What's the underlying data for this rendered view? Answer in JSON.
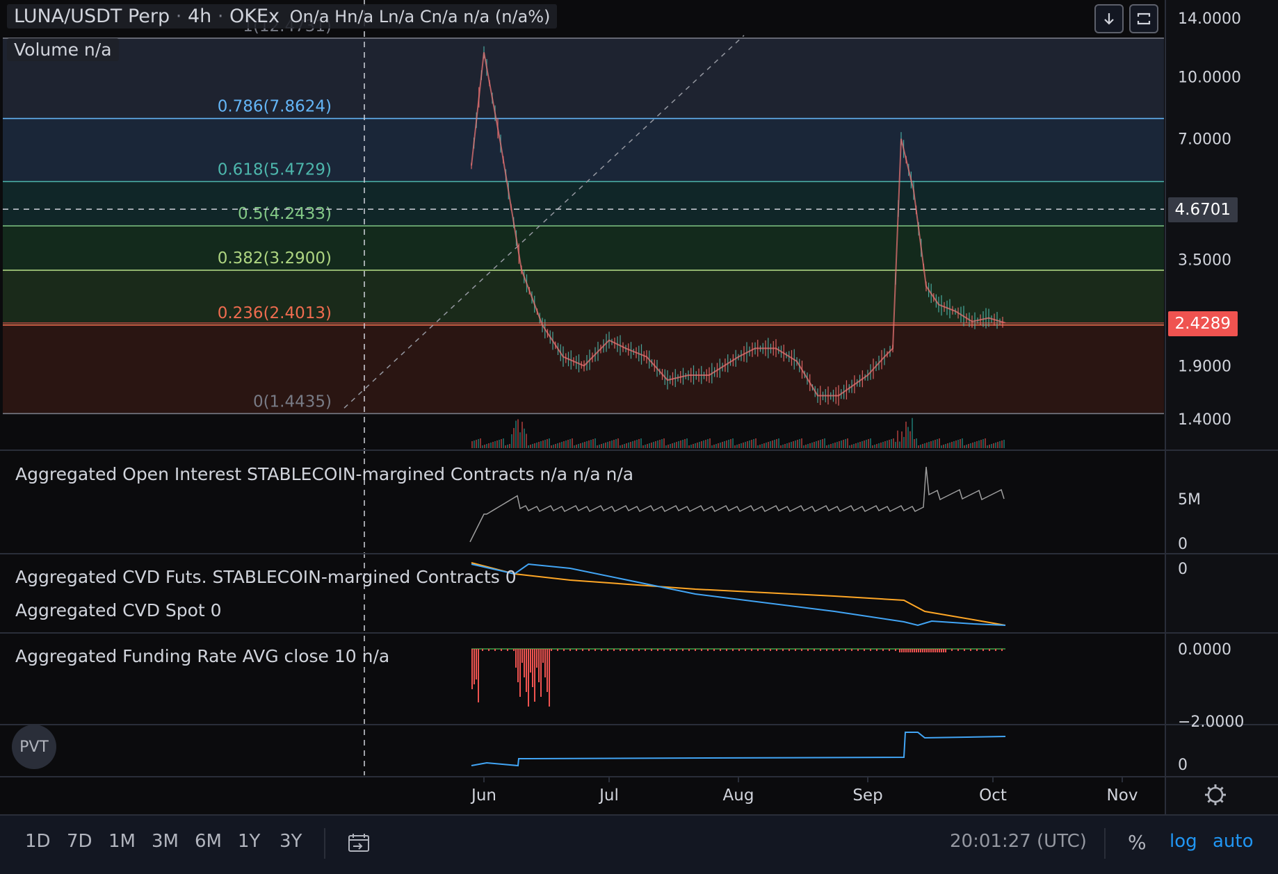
{
  "header": {
    "symbol": "LUNA/USDT Perp",
    "interval": "4h",
    "exchange": "OKEx",
    "ohlc": "On/a  Hn/a  Ln/a  Cn/a  n/a (n/a%)",
    "volume_label": "Volume  n/a",
    "sep": "·"
  },
  "panes": {
    "oi_label": "Aggregated Open Interest STABLECOIN-margined Contracts  n/a  n/a  n/a",
    "cvd_futs_label": "Aggregated CVD Futs. STABLECOIN-margined Contracts 0",
    "cvd_spot_label": "Aggregated CVD Spot 0",
    "funding_label": "Aggregated Funding Rate AVG close 10  n/a",
    "pvt_label": "PVT"
  },
  "price_axis": {
    "ticks": [
      "14.0000",
      "10.0000",
      "7.0000",
      "3.5000",
      "1.9000",
      "1.4000"
    ],
    "last_price": "2.4289",
    "crosshair_price": "4.6701",
    "last_price_color": "#ef5350",
    "oi_ticks": [
      "5M",
      "0"
    ],
    "cvd_ticks": [
      "0"
    ],
    "funding_ticks": [
      "0.0000",
      "−2.0000"
    ],
    "pvt_ticks": [
      "0"
    ]
  },
  "time_axis": {
    "labels": [
      "Jun",
      "Jul",
      "Aug",
      "Sep",
      "Oct",
      "Nov"
    ]
  },
  "fib_levels": [
    {
      "label": "1(12.4731)",
      "level": 1,
      "price": 12.4731,
      "color": "#787b86"
    },
    {
      "label": "0.786(7.8624)",
      "level": 0.786,
      "price": 7.8624,
      "color": "#64b5f6"
    },
    {
      "label": "0.618(5.4729)",
      "level": 0.618,
      "price": 5.4729,
      "color": "#4db6ac"
    },
    {
      "label": "0.5(4.2433)",
      "level": 0.5,
      "price": 4.2433,
      "color": "#81c784"
    },
    {
      "label": "0.382(3.2900)",
      "level": 0.382,
      "price": 3.29,
      "color": "#aed581"
    },
    {
      "label": "0.236(2.4013)",
      "level": 0.236,
      "price": 2.4013,
      "color": "#ef6c4f"
    },
    {
      "label": "0(1.4435)",
      "level": 0,
      "price": 1.4435,
      "color": "#787b86"
    }
  ],
  "bottom_bar": {
    "ranges": [
      "1D",
      "7D",
      "1M",
      "3M",
      "6M",
      "1Y",
      "3Y"
    ],
    "clock": "20:01:27 (UTC)",
    "percent": "%",
    "log": "log",
    "auto": "auto"
  },
  "chart_data": {
    "type": "line",
    "title": "LUNA/USDT Perp · 4h · OKEx",
    "scale": "log",
    "ylim": [
      1.3,
      14
    ],
    "x": [
      "2021-05-29",
      "2021-06-01",
      "2021-06-05",
      "2021-06-10",
      "2021-06-15",
      "2021-06-20",
      "2021-06-25",
      "2021-07-01",
      "2021-07-05",
      "2021-07-10",
      "2021-07-15",
      "2021-07-20",
      "2021-07-25",
      "2021-08-01",
      "2021-08-05",
      "2021-08-10",
      "2021-08-15",
      "2021-08-20",
      "2021-08-25",
      "2021-09-01",
      "2021-09-05",
      "2021-09-07",
      "2021-09-09",
      "2021-09-12",
      "2021-09-15",
      "2021-09-18",
      "2021-09-22",
      "2021-09-26",
      "2021-09-30",
      "2021-10-04"
    ],
    "series": [
      {
        "values": [
          6.0,
          11.5,
          6.8,
          3.3,
          2.4,
          2.0,
          1.9,
          2.2,
          2.1,
          2.0,
          1.75,
          1.8,
          1.8,
          2.0,
          2.1,
          2.1,
          1.95,
          1.6,
          1.6,
          1.8,
          2.0,
          2.1,
          7.0,
          5.2,
          3.0,
          2.7,
          2.6,
          2.45,
          2.5,
          2.43
        ]
      }
    ]
  }
}
